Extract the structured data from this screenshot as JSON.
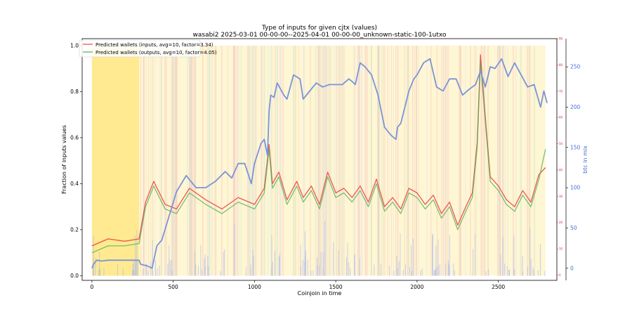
{
  "chart_data": {
    "type": "line",
    "title": "Type of inputs for given cjtx (values)",
    "subtitle": "wasabi2 2025-03-01 00-00-00--2025-04-01 00-00-00_unknown-static-100-1utxo",
    "xlabel": "Coinjoin in time",
    "ylabel": "Fraction of inputs values",
    "y2label": "btc in mix",
    "xlim": [
      -60,
      2860
    ],
    "ylim": [
      -0.02,
      1.03
    ],
    "y2lim": [
      -15,
      285
    ],
    "y3lim": [
      -2,
      90
    ],
    "x_ticks": [
      "0",
      "500",
      "1000",
      "1500",
      "2000",
      "2500"
    ],
    "y_ticks": [
      "0.0",
      "0.2",
      "0.4",
      "0.6",
      "0.8",
      "1.0"
    ],
    "y2_ticks": [
      "0",
      "50",
      "100",
      "150",
      "200",
      "250"
    ],
    "y3_ticks": [
      "0",
      "10",
      "20",
      "30",
      "40",
      "50",
      "60",
      "70",
      "80",
      "90"
    ],
    "grid": false,
    "legend_position": "top-left",
    "colors": {
      "inputs": "#ee4444",
      "outputs": "#4caf50",
      "btc": "#7b93dc",
      "background_band": "#fff3c4",
      "early_band": "#ffe98a",
      "axis3": "#d62728",
      "axis2": "#4a6fd6"
    },
    "series": [
      {
        "name": "Predicted wallets (inputs, avg=10, factor=3.34)",
        "x": [
          0,
          100,
          200,
          290,
          330,
          380,
          450,
          520,
          600,
          700,
          800,
          900,
          1000,
          1060,
          1090,
          1110,
          1150,
          1200,
          1260,
          1300,
          1350,
          1400,
          1450,
          1500,
          1550,
          1600,
          1650,
          1700,
          1750,
          1800,
          1850,
          1900,
          1950,
          2000,
          2050,
          2100,
          2150,
          2200,
          2250,
          2300,
          2340,
          2370,
          2390,
          2420,
          2450,
          2500,
          2550,
          2600,
          2650,
          2700,
          2750,
          2790
        ],
        "values": [
          0.13,
          0.16,
          0.15,
          0.16,
          0.32,
          0.41,
          0.31,
          0.29,
          0.38,
          0.33,
          0.29,
          0.34,
          0.31,
          0.38,
          0.57,
          0.4,
          0.45,
          0.33,
          0.41,
          0.34,
          0.39,
          0.31,
          0.45,
          0.36,
          0.38,
          0.34,
          0.39,
          0.32,
          0.42,
          0.3,
          0.34,
          0.29,
          0.38,
          0.36,
          0.31,
          0.35,
          0.27,
          0.32,
          0.22,
          0.3,
          0.36,
          0.58,
          0.96,
          0.69,
          0.43,
          0.39,
          0.33,
          0.3,
          0.37,
          0.32,
          0.44,
          0.47
        ]
      },
      {
        "name": "Predicted wallets (outputs, avg=10, factor=4.05)",
        "x": [
          0,
          100,
          200,
          290,
          330,
          380,
          450,
          520,
          600,
          700,
          800,
          900,
          1000,
          1060,
          1090,
          1110,
          1150,
          1200,
          1260,
          1300,
          1350,
          1400,
          1450,
          1500,
          1550,
          1600,
          1650,
          1700,
          1750,
          1800,
          1850,
          1900,
          1950,
          2000,
          2050,
          2100,
          2150,
          2200,
          2250,
          2300,
          2340,
          2370,
          2390,
          2420,
          2450,
          2500,
          2550,
          2600,
          2650,
          2700,
          2750,
          2790
        ],
        "values": [
          0.1,
          0.13,
          0.13,
          0.14,
          0.3,
          0.39,
          0.29,
          0.27,
          0.36,
          0.31,
          0.27,
          0.32,
          0.29,
          0.36,
          0.55,
          0.38,
          0.43,
          0.31,
          0.39,
          0.32,
          0.37,
          0.29,
          0.43,
          0.34,
          0.36,
          0.32,
          0.37,
          0.3,
          0.4,
          0.28,
          0.32,
          0.27,
          0.36,
          0.34,
          0.29,
          0.33,
          0.25,
          0.3,
          0.2,
          0.28,
          0.34,
          0.56,
          0.93,
          0.67,
          0.41,
          0.37,
          0.31,
          0.28,
          0.35,
          0.3,
          0.42,
          0.55
        ]
      },
      {
        "name": "",
        "axis": "right",
        "x": [
          0,
          10,
          30,
          60,
          100,
          200,
          290,
          300,
          340,
          370,
          400,
          430,
          460,
          520,
          580,
          640,
          700,
          760,
          820,
          860,
          900,
          940,
          980,
          1000,
          1040,
          1060,
          1080,
          1090,
          1100,
          1120,
          1140,
          1180,
          1200,
          1240,
          1280,
          1300,
          1340,
          1380,
          1420,
          1460,
          1500,
          1540,
          1580,
          1600,
          1620,
          1650,
          1680,
          1720,
          1760,
          1800,
          1840,
          1870,
          1880,
          1900,
          1950,
          1980,
          2000,
          2040,
          2080,
          2120,
          2160,
          2200,
          2240,
          2280,
          2320,
          2360,
          2390,
          2420,
          2450,
          2480,
          2520,
          2560,
          2600,
          2640,
          2680,
          2720,
          2760,
          2780,
          2800
        ],
        "values": [
          0,
          5,
          10,
          9,
          10,
          10,
          10,
          5,
          3,
          0,
          28,
          35,
          55,
          95,
          115,
          100,
          100,
          108,
          120,
          112,
          130,
          130,
          105,
          130,
          155,
          160,
          140,
          195,
          215,
          212,
          230,
          215,
          210,
          240,
          235,
          210,
          220,
          230,
          225,
          228,
          228,
          228,
          235,
          232,
          228,
          255,
          250,
          240,
          215,
          175,
          165,
          160,
          175,
          180,
          220,
          235,
          240,
          255,
          260,
          225,
          220,
          235,
          235,
          215,
          222,
          228,
          245,
          225,
          250,
          248,
          260,
          238,
          255,
          240,
          225,
          228,
          200,
          220,
          205
        ]
      }
    ]
  }
}
